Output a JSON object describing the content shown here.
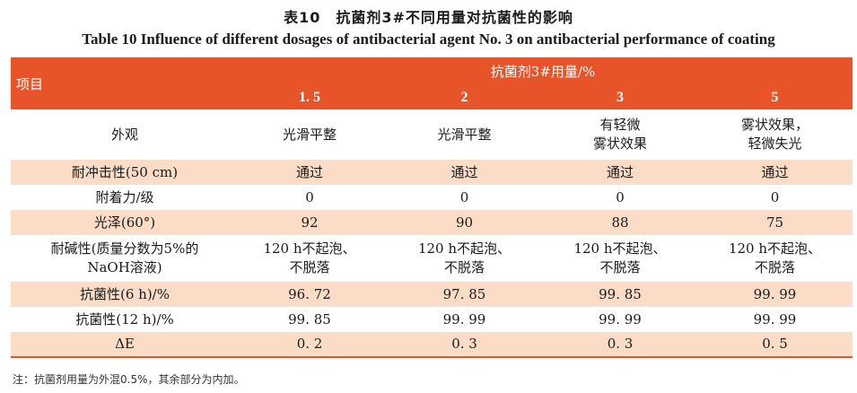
{
  "title_cn": "表10　抗菌剂3#不同用量对抗菌性的影响",
  "title_en": "Table 10    Influence of different dosages of antibacterial agent No. 3 on antibacterial performance of coating",
  "header": {
    "item_label": "项目",
    "group_label": "抗菌剂3#用量/%",
    "columns": [
      "1. 5",
      "2",
      "3",
      "5"
    ]
  },
  "rows": [
    {
      "label": "外观",
      "values": [
        "光滑平整",
        "光滑平整",
        "有轻微\n雾状效果",
        "雾状效果，\n轻微失光"
      ],
      "shaded": false
    },
    {
      "label": "耐冲击性(50 cm)",
      "values": [
        "通过",
        "通过",
        "通过",
        "通过"
      ],
      "shaded": true
    },
    {
      "label": "附着力/级",
      "values": [
        "0",
        "0",
        "0",
        "0"
      ],
      "shaded": false
    },
    {
      "label": "光泽(60°)",
      "values": [
        "92",
        "90",
        "88",
        "75"
      ],
      "shaded": true
    },
    {
      "label": "耐碱性(质量分数为5%的\nNaOH溶液)",
      "values": [
        "120 h不起泡、\n不脱落",
        "120 h不起泡、\n不脱落",
        "120 h不起泡、\n不脱落",
        "120 h不起泡、\n不脱落"
      ],
      "shaded": false
    },
    {
      "label": "抗菌性(6 h)/%",
      "values": [
        "96. 72",
        "97. 85",
        "99. 85",
        "99. 99"
      ],
      "shaded": true
    },
    {
      "label": "抗菌性(12 h)/%",
      "values": [
        "99. 85",
        "99. 99",
        "99. 99",
        "99. 99"
      ],
      "shaded": false
    },
    {
      "label": "ΔE",
      "values": [
        "0. 2",
        "0. 3",
        "0. 3",
        "0. 5"
      ],
      "shaded": true
    }
  ],
  "note": "注：抗菌剂用量为外混0.5%，其余部分为内加。",
  "colors": {
    "header_bg": "#e8542a",
    "shade_bg": "#fbdcc6"
  }
}
